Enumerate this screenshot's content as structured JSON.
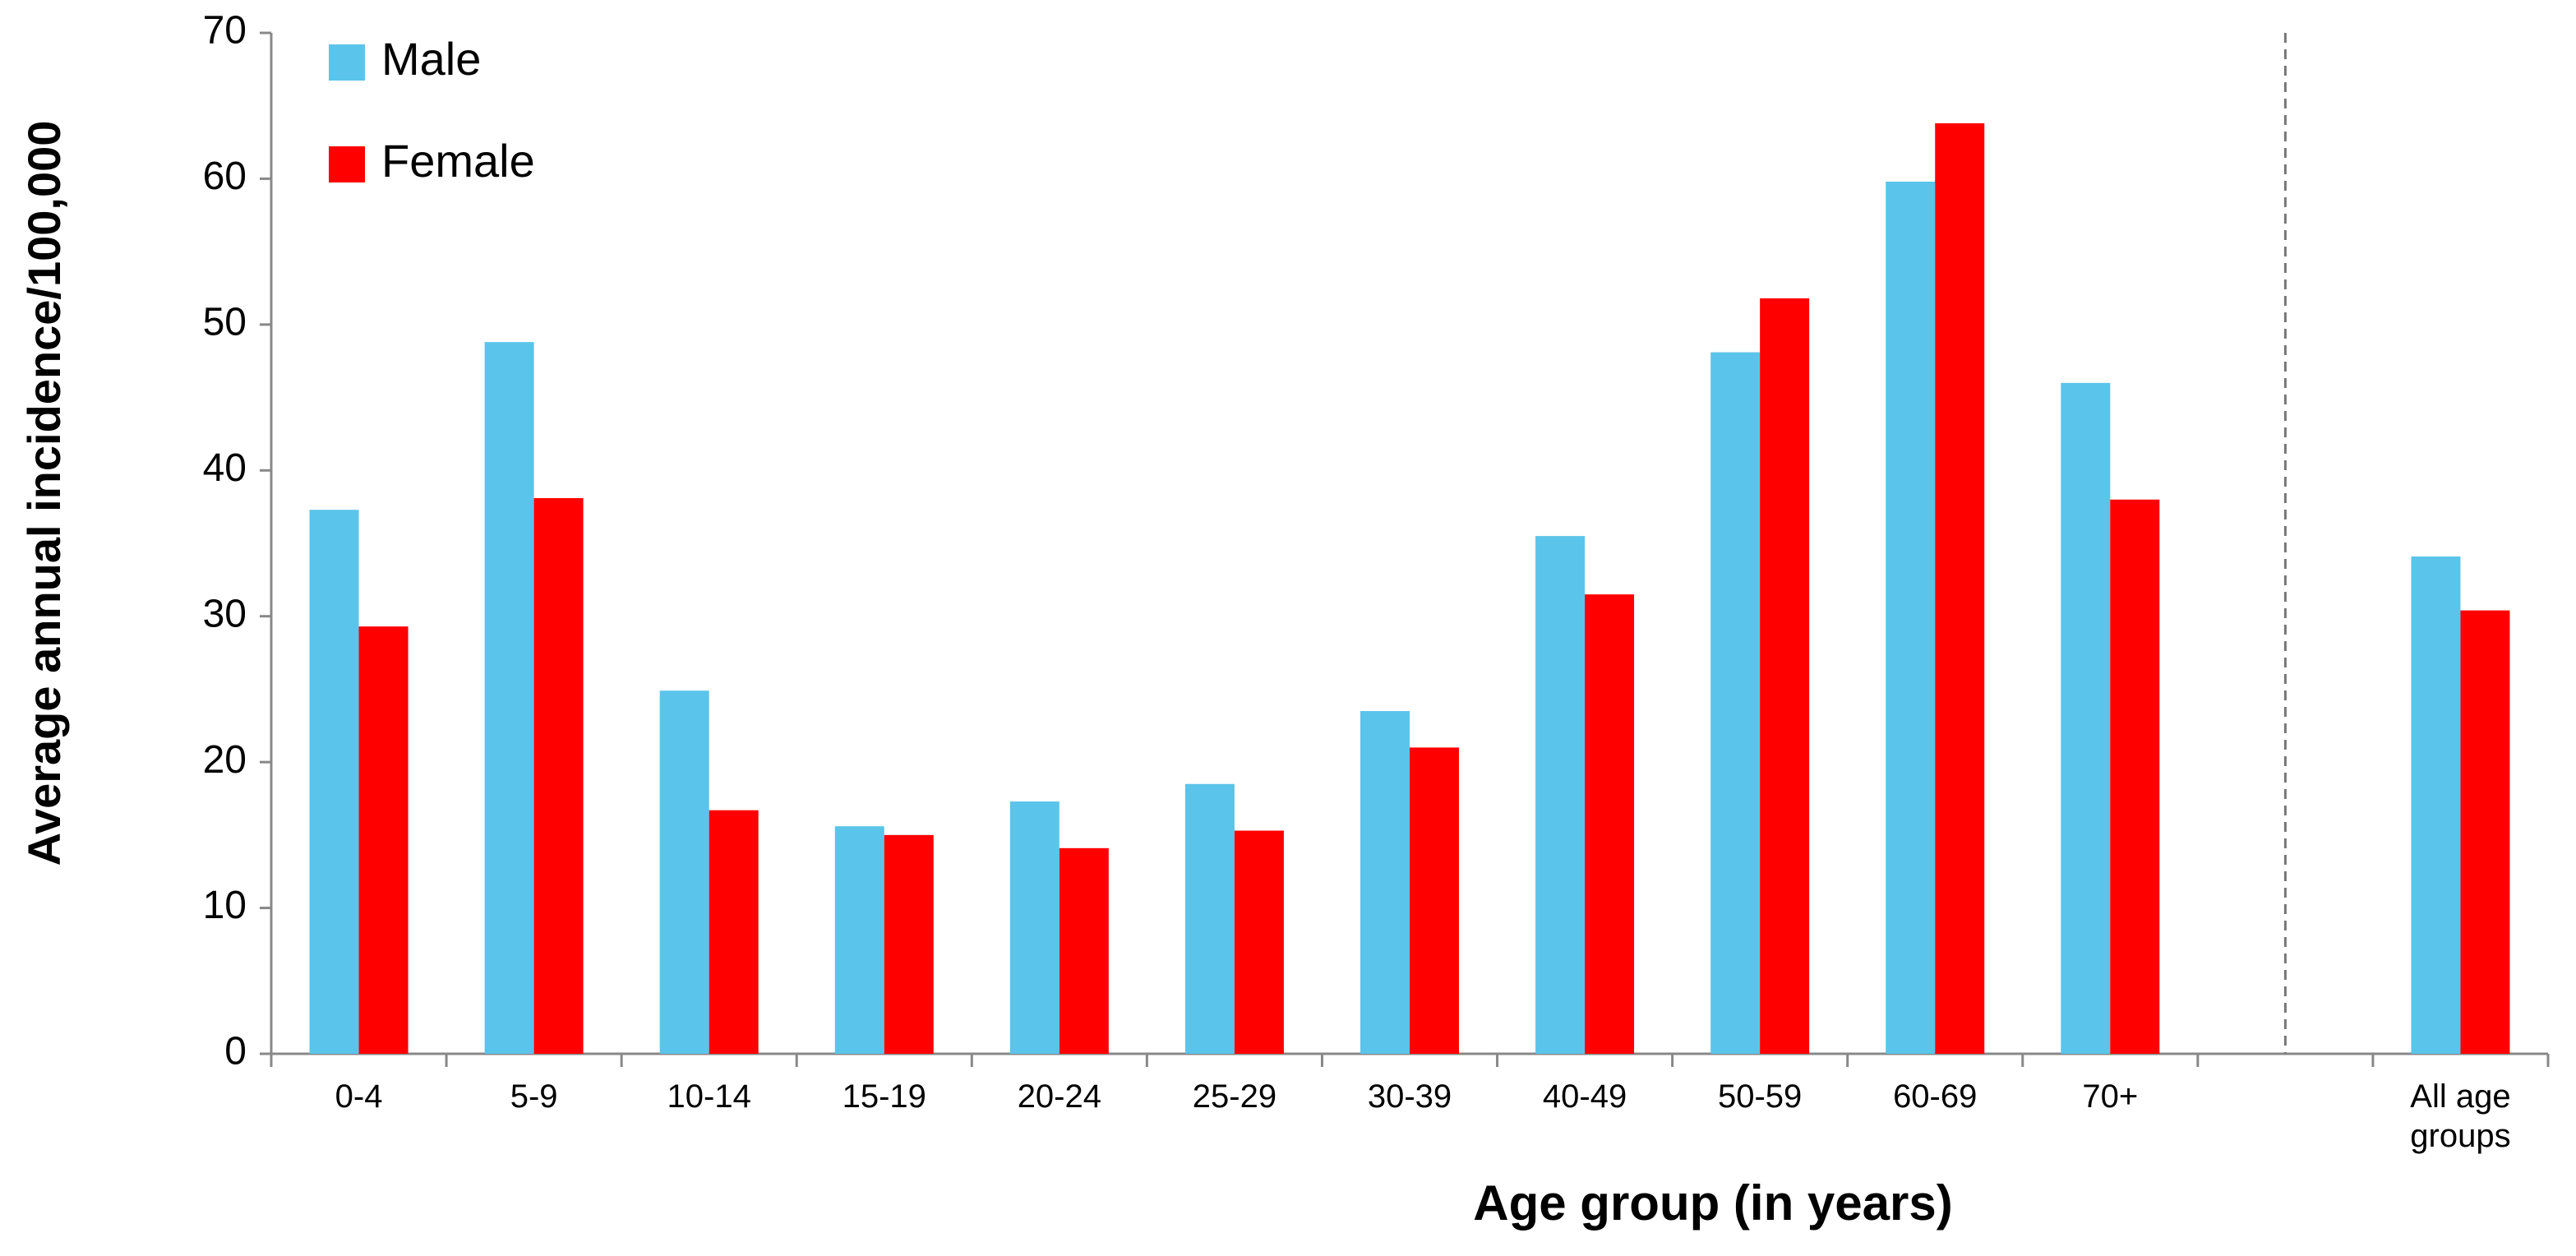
{
  "chart_data": {
    "type": "bar",
    "x_label": "Age group (in years)",
    "y_label": "Average annual incidence/100,000",
    "categories": [
      "0-4",
      "5-9",
      "10-14",
      "15-19",
      "20-24",
      "25-29",
      "30-39",
      "40-49",
      "50-59",
      "60-69",
      "70+",
      null,
      "All age groups"
    ],
    "series": [
      {
        "name": "Male",
        "color": "#5bc4ea",
        "values": [
          37.3,
          48.8,
          24.9,
          15.6,
          17.3,
          18.5,
          23.5,
          35.5,
          48.1,
          59.8,
          46.0,
          null,
          34.1
        ]
      },
      {
        "name": "Female",
        "color": "#ff0000",
        "values": [
          29.3,
          38.1,
          16.7,
          15.0,
          14.1,
          15.3,
          21.0,
          31.5,
          51.8,
          63.8,
          38.0,
          null,
          30.4
        ]
      }
    ],
    "ylim": [
      0,
      70
    ],
    "yticks": [
      0,
      10,
      20,
      30,
      40,
      50,
      60,
      70
    ],
    "grid": false,
    "legend": "top-left"
  }
}
